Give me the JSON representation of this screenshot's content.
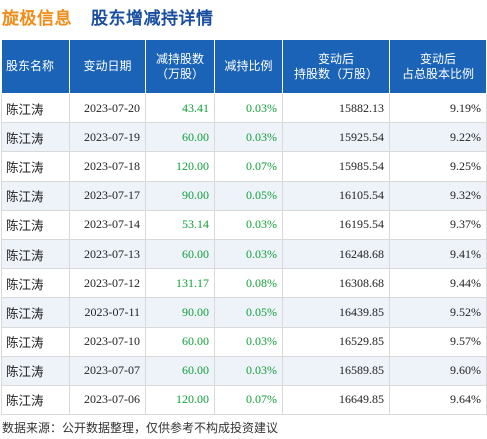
{
  "header": {
    "stock_name": "旋极信息",
    "title": "股东增减持详情"
  },
  "table": {
    "columns": [
      "股东名称",
      "变动日期",
      "减持股数\n（万股）",
      "减持比例",
      "变动后\n持股数（万股）",
      "变动后\n占总股本比例"
    ],
    "rows": [
      {
        "name": "陈江涛",
        "date": "2023-07-20",
        "shares": "43.41",
        "ratio": "0.03%",
        "after_shares": "15882.13",
        "after_pct": "9.19%"
      },
      {
        "name": "陈江涛",
        "date": "2023-07-19",
        "shares": "60.00",
        "ratio": "0.03%",
        "after_shares": "15925.54",
        "after_pct": "9.22%"
      },
      {
        "name": "陈江涛",
        "date": "2023-07-18",
        "shares": "120.00",
        "ratio": "0.07%",
        "after_shares": "15985.54",
        "after_pct": "9.25%"
      },
      {
        "name": "陈江涛",
        "date": "2023-07-17",
        "shares": "90.00",
        "ratio": "0.05%",
        "after_shares": "16105.54",
        "after_pct": "9.32%"
      },
      {
        "name": "陈江涛",
        "date": "2023-07-14",
        "shares": "53.14",
        "ratio": "0.03%",
        "after_shares": "16195.54",
        "after_pct": "9.37%"
      },
      {
        "name": "陈江涛",
        "date": "2023-07-13",
        "shares": "60.00",
        "ratio": "0.03%",
        "after_shares": "16248.68",
        "after_pct": "9.41%"
      },
      {
        "name": "陈江涛",
        "date": "2023-07-12",
        "shares": "131.17",
        "ratio": "0.08%",
        "after_shares": "16308.68",
        "after_pct": "9.44%"
      },
      {
        "name": "陈江涛",
        "date": "2023-07-11",
        "shares": "90.00",
        "ratio": "0.05%",
        "after_shares": "16439.85",
        "after_pct": "9.52%"
      },
      {
        "name": "陈江涛",
        "date": "2023-07-10",
        "shares": "60.00",
        "ratio": "0.03%",
        "after_shares": "16529.85",
        "after_pct": "9.57%"
      },
      {
        "name": "陈江涛",
        "date": "2023-07-07",
        "shares": "60.00",
        "ratio": "0.03%",
        "after_shares": "16589.85",
        "after_pct": "9.60%"
      },
      {
        "name": "陈江涛",
        "date": "2023-07-06",
        "shares": "120.00",
        "ratio": "0.07%",
        "after_shares": "16649.85",
        "after_pct": "9.64%"
      }
    ]
  },
  "footer": {
    "source": "数据来源：公开数据整理，仅供参考不构成投资建议"
  },
  "colors": {
    "stock_name": "#f08c1a",
    "title": "#1a4fa0",
    "header_bg": "#1a63b6",
    "positive_value": "#12a03a",
    "row_alt_bg": "#eef3fa"
  }
}
